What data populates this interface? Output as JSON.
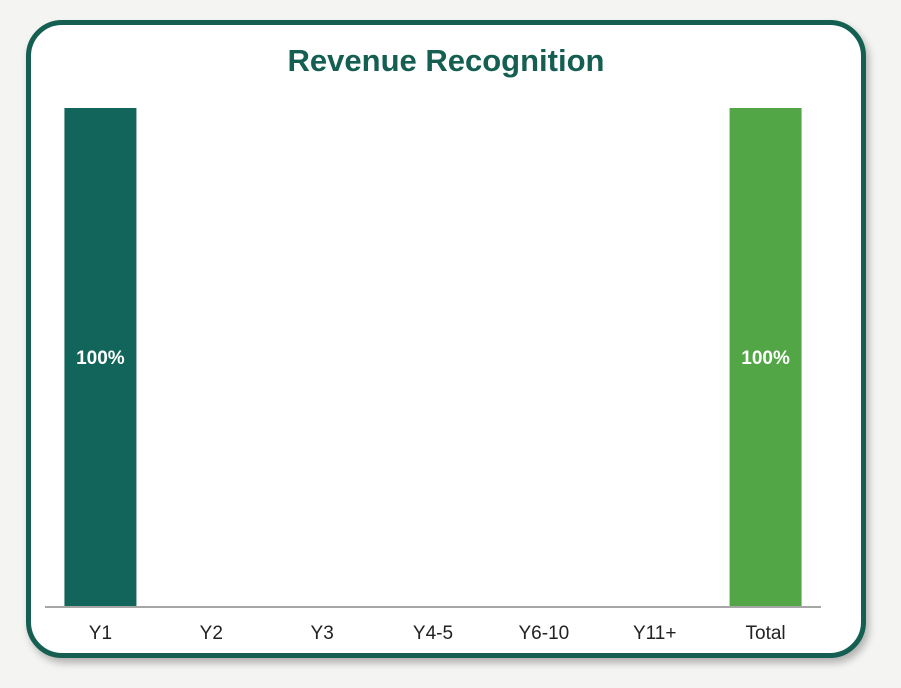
{
  "chart_data": {
    "type": "bar",
    "title": "Revenue Recognition",
    "categories": [
      "Y1",
      "Y2",
      "Y3",
      "Y4-5",
      "Y6-10",
      "Y11+",
      "Total"
    ],
    "values": [
      100,
      0,
      0,
      0,
      0,
      0,
      100
    ],
    "data_labels": [
      "100%",
      "",
      "",
      "",
      "",
      "",
      "100%"
    ],
    "ylim": [
      0,
      100
    ],
    "xlabel": "",
    "ylabel": "",
    "grid": false,
    "colors": {
      "default_bar": "#12655a",
      "total_bar": "#53a646",
      "axis": "#a6a6a6",
      "data_label": "#ffffff",
      "tick_label": "#222222",
      "title": "#145f52",
      "frame": "#145f52"
    }
  }
}
